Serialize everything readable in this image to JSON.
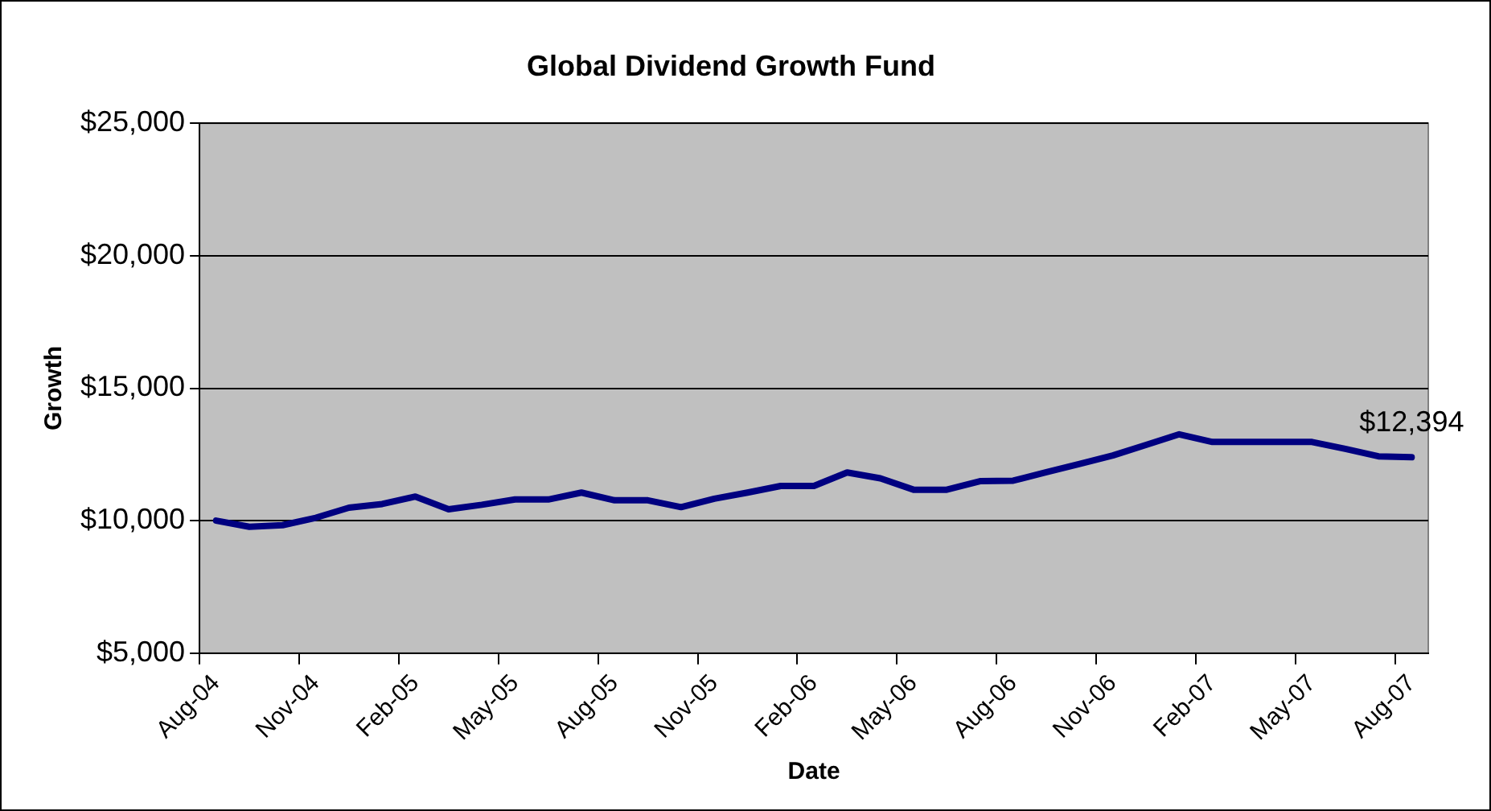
{
  "chart_data": {
    "type": "line",
    "title": "Global Dividend Growth Fund",
    "xlabel": "Date",
    "ylabel": "Growth",
    "categories": [
      "Aug-04",
      null,
      null,
      "Nov-04",
      null,
      null,
      "Feb-05",
      null,
      null,
      "May-05",
      null,
      null,
      "Aug-05",
      null,
      null,
      "Nov-05",
      null,
      null,
      "Feb-06",
      null,
      null,
      "May-06",
      null,
      null,
      "Aug-06",
      null,
      null,
      "Nov-06",
      null,
      null,
      "Feb-07",
      null,
      null,
      "May-07",
      null,
      null,
      "Aug-07"
    ],
    "series": [
      {
        "color": "#000080",
        "values": [
          10000,
          9770,
          9830,
          10110,
          10490,
          10630,
          10910,
          10430,
          10600,
          10800,
          10800,
          11060,
          10770,
          10770,
          10510,
          10830,
          11060,
          11310,
          11310,
          11820,
          11600,
          11170,
          11170,
          11490,
          11510,
          11830,
          12140,
          12460,
          12860,
          13260,
          12970,
          12970,
          12970,
          12970,
          12710,
          12430,
          12394
        ]
      }
    ],
    "ylim": [
      5000,
      25000
    ],
    "yticks": [
      {
        "value": 5000,
        "label": "$5,000"
      },
      {
        "value": 10000,
        "label": "$10,000"
      },
      {
        "value": 15000,
        "label": "$15,000"
      },
      {
        "value": 20000,
        "label": "$20,000"
      },
      {
        "value": 25000,
        "label": "$25,000"
      }
    ],
    "grid": "y",
    "legend": false,
    "marker": "none",
    "line_style": "solid",
    "annotations": [
      {
        "text": "$12,394",
        "x": "Aug-07",
        "y": 12394
      }
    ]
  }
}
